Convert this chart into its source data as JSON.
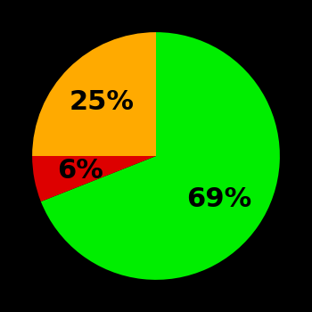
{
  "slices": [
    69,
    6,
    25
  ],
  "colors": [
    "#00ee00",
    "#dd0000",
    "#ffaa00"
  ],
  "labels": [
    "69%",
    "6%",
    "25%"
  ],
  "background_color": "#000000",
  "label_fontsize": 22,
  "label_fontweight": "bold",
  "startangle": 90
}
